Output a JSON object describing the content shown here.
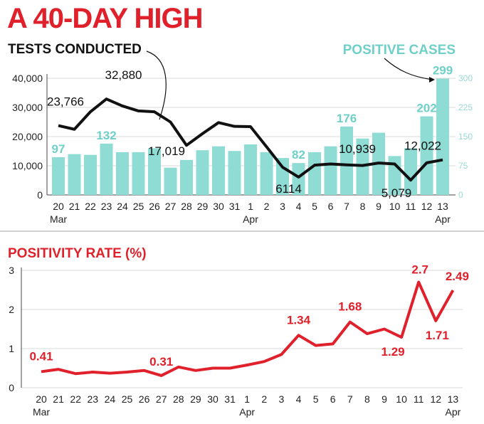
{
  "headline": "A 40-DAY HIGH",
  "chart_data": [
    {
      "type": "bar+line",
      "title": "TESTS CONDUCTED",
      "secondary_title": "POSITIVE CASES",
      "categories": [
        "20",
        "21",
        "22",
        "23",
        "24",
        "25",
        "26",
        "27",
        "28",
        "29",
        "30",
        "31",
        "1",
        "2",
        "3",
        "4",
        "5",
        "6",
        "7",
        "8",
        "9",
        "10",
        "11",
        "12",
        "13"
      ],
      "month_labels": [
        {
          "index": 0,
          "text": "Mar"
        },
        {
          "index": 12,
          "text": "Apr"
        },
        {
          "index": 24,
          "text": "Apr"
        }
      ],
      "series": [
        {
          "name": "Tests conducted",
          "type": "line",
          "axis": "left",
          "values": [
            23766,
            22500,
            28500,
            32880,
            30500,
            28800,
            28500,
            25000,
            17019,
            21000,
            24800,
            23500,
            23400,
            16500,
            9500,
            6114,
            10200,
            10600,
            10300,
            10100,
            10939,
            10600,
            5079,
            11000,
            12022
          ]
        },
        {
          "name": "Positive cases",
          "type": "bar",
          "axis": "right",
          "values": [
            97,
            105,
            103,
            132,
            110,
            110,
            120,
            70,
            90,
            115,
            125,
            113,
            130,
            110,
            95,
            82,
            110,
            125,
            176,
            145,
            160,
            100,
            120,
            202,
            299
          ]
        }
      ],
      "left_axis": {
        "ticks": [
          "0",
          "10,000",
          "20,000",
          "30,000",
          "40,000"
        ],
        "ylim": [
          0,
          40000
        ]
      },
      "right_axis": {
        "ticks": [
          "0",
          "75",
          "150",
          "225",
          "300"
        ],
        "ylim": [
          0,
          300
        ]
      },
      "data_labels_tests": [
        {
          "index": 0,
          "text": "23,766"
        },
        {
          "index": 3,
          "text": "32,880"
        },
        {
          "index": 8,
          "text": "17,019"
        },
        {
          "index": 15,
          "text": "6114"
        },
        {
          "index": 20,
          "text": "10,939"
        },
        {
          "index": 22,
          "text": "5,079"
        },
        {
          "index": 24,
          "text": "12,022"
        }
      ],
      "data_labels_positive": [
        {
          "index": 0,
          "text": "97"
        },
        {
          "index": 3,
          "text": "132"
        },
        {
          "index": 15,
          "text": "82"
        },
        {
          "index": 18,
          "text": "176"
        },
        {
          "index": 23,
          "text": "202"
        },
        {
          "index": 24,
          "text": "299"
        }
      ]
    },
    {
      "type": "line",
      "title": "POSITIVITY RATE (%)",
      "categories": [
        "20",
        "21",
        "22",
        "23",
        "24",
        "25",
        "26",
        "27",
        "28",
        "29",
        "30",
        "31",
        "1",
        "2",
        "3",
        "4",
        "5",
        "6",
        "7",
        "8",
        "9",
        "10",
        "11",
        "12",
        "13"
      ],
      "month_labels": [
        {
          "index": 0,
          "text": "Mar"
        },
        {
          "index": 12,
          "text": "Apr"
        },
        {
          "index": 24,
          "text": "Apr"
        }
      ],
      "series": [
        {
          "name": "Positivity rate",
          "values": [
            0.41,
            0.47,
            0.36,
            0.4,
            0.37,
            0.4,
            0.44,
            0.31,
            0.53,
            0.44,
            0.5,
            0.5,
            0.58,
            0.67,
            0.85,
            1.34,
            1.08,
            1.12,
            1.68,
            1.38,
            1.5,
            1.29,
            2.7,
            1.71,
            2.49
          ]
        }
      ],
      "y_axis": {
        "ticks": [
          "0",
          "1",
          "2",
          "3"
        ],
        "ylim": [
          0,
          3
        ]
      },
      "data_labels": [
        {
          "index": 0,
          "text": "0.41"
        },
        {
          "index": 7,
          "text": "0.31"
        },
        {
          "index": 15,
          "text": "1.34"
        },
        {
          "index": 18,
          "text": "1.68"
        },
        {
          "index": 21,
          "text": "1.29"
        },
        {
          "index": 22,
          "text": "2.7"
        },
        {
          "index": 23,
          "text": "1.71"
        },
        {
          "index": 24,
          "text": "2.49"
        }
      ]
    }
  ],
  "colors": {
    "red": "#e0202a",
    "teal": "#6fd0c8",
    "bar": "#8fdcd4",
    "line": "#111111",
    "grid": "#d8d8d8"
  }
}
